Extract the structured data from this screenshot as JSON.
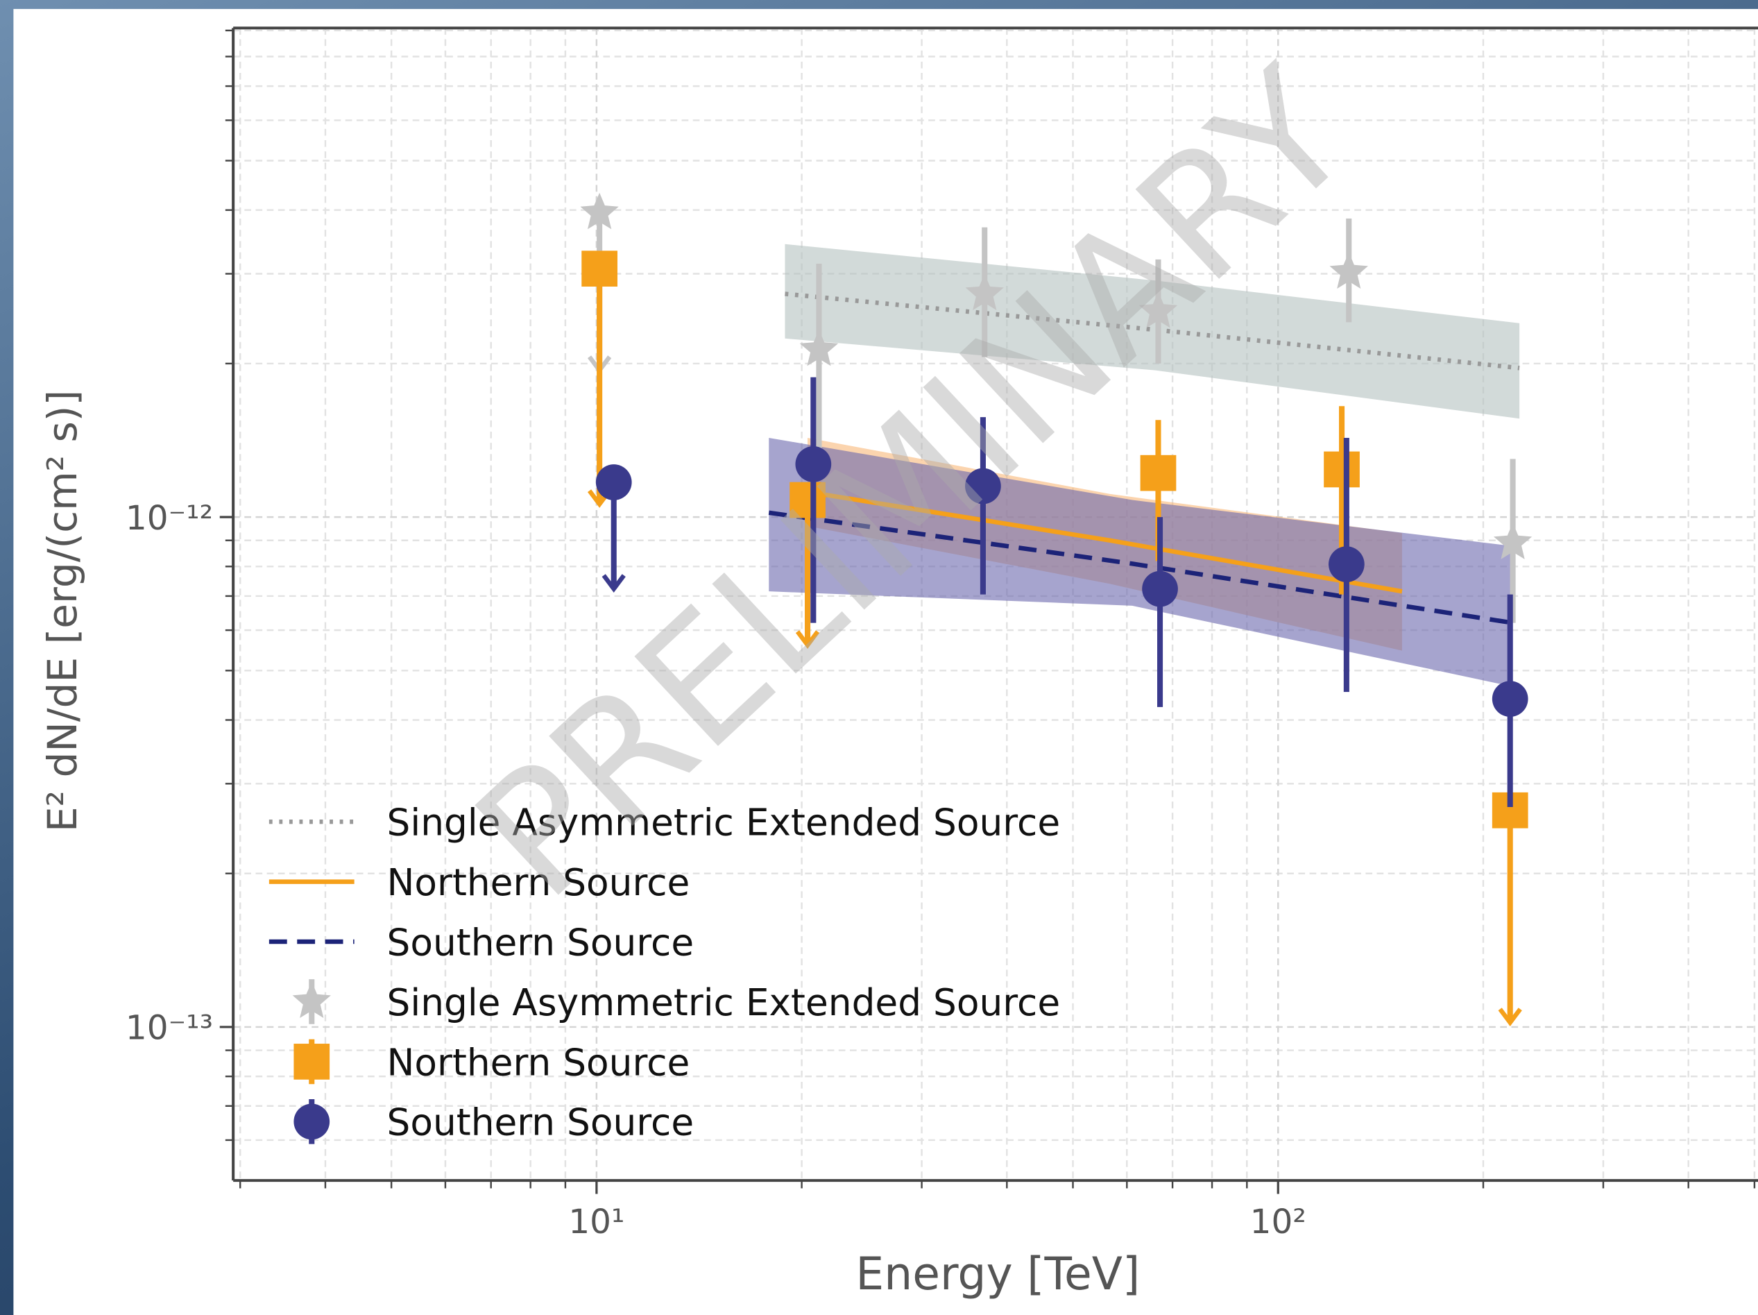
{
  "chart_data": {
    "type": "scatter",
    "xlabel": "Energy [TeV]",
    "ylabel": "E² dN/dE [erg/(cm² s)]",
    "watermark": "PRELIMINARY",
    "xscale": "log",
    "yscale": "log",
    "grid": true,
    "xlim": [
      2.93,
      506
    ],
    "ylim": [
      5e-14,
      9.1e-12
    ],
    "xticks": [
      {
        "value": 10,
        "label": "10¹"
      },
      {
        "value": 100,
        "label": "10²"
      }
    ],
    "yticks": [
      {
        "value": 1e-13,
        "label": "10⁻¹³"
      },
      {
        "value": 1e-12,
        "label": "10⁻¹²"
      }
    ],
    "xminorticks": [
      3,
      4,
      5,
      6,
      7,
      8,
      9,
      20,
      30,
      40,
      50,
      60,
      70,
      80,
      90,
      200,
      300,
      400,
      500
    ],
    "yminorticks": [
      6e-14,
      7e-14,
      8e-14,
      9e-14,
      2e-13,
      3e-13,
      4e-13,
      5e-13,
      6e-13,
      7e-13,
      8e-13,
      9e-13,
      2e-12,
      3e-12,
      4e-12,
      5e-12,
      6e-12,
      7e-12,
      8e-12,
      9e-12
    ],
    "fits": [
      {
        "name": "Single Asymmetric Extended Source",
        "color": "#999999",
        "linestyle": "dotted",
        "band_color": "#b4c1bf",
        "x": [
          18.9,
          66.0,
          226
        ],
        "values": [
          2.74e-12,
          2.33e-12,
          1.96e-12
        ],
        "band_lower": [
          2.24e-12,
          1.94e-12,
          1.56e-12
        ],
        "band_upper": [
          3.43e-12,
          2.91e-12,
          2.4e-12
        ]
      },
      {
        "name": "Northern Source",
        "color": "#f5a01a",
        "linestyle": "solid",
        "band_color": "#f8b878",
        "x": [
          20.4,
          56.6,
          152
        ],
        "values": [
          1.12e-12,
          9e-13,
          7.15e-13
        ],
        "band_lower": [
          9.6e-13,
          7.4e-13,
          5.47e-13
        ],
        "band_upper": [
          1.43e-12,
          1.11e-12,
          9.3e-13
        ]
      },
      {
        "name": "Southern Source",
        "color": "#1c2378",
        "linestyle": "dashed",
        "band_color": "#6b68ad",
        "x": [
          17.9,
          61.1,
          221
        ],
        "values": [
          1.02e-12,
          8.1e-13,
          6.2e-13
        ],
        "band_lower": [
          7.15e-13,
          6.7e-13,
          4.65e-13
        ],
        "band_upper": [
          1.43e-12,
          1.08e-12,
          8.77e-13
        ]
      }
    ],
    "series": [
      {
        "name": "Single Asymmetric Extended Source",
        "color": "#c4c4c4",
        "marker": "star",
        "x": [
          10.1,
          21.2,
          37.1,
          66.7,
          127,
          221
        ],
        "values": [
          3.95e-12,
          2.13e-12,
          2.74e-12,
          2.53e-12,
          3.02e-12,
          8.9e-13
        ],
        "lower": [
          1.94e-12,
          1.36e-12,
          2.06e-12,
          2e-12,
          2.41e-12,
          6.2e-13
        ],
        "upper": [
          null,
          3.14e-12,
          3.7e-12,
          3.2e-12,
          3.85e-12,
          1.3e-12
        ],
        "upper_limit": [
          true,
          false,
          false,
          false,
          false,
          false
        ]
      },
      {
        "name": "Northern Source",
        "color": "#f5a01a",
        "marker": "square",
        "x": [
          10.1,
          20.4,
          66.7,
          124,
          219
        ],
        "values": [
          3.07e-12,
          1.08e-12,
          1.22e-12,
          1.24e-12,
          2.66e-13
        ],
        "lower": [
          1.06e-12,
          5.61e-13,
          8.2e-13,
          7.05e-13,
          1.02e-13
        ],
        "upper": [
          null,
          null,
          1.55e-12,
          1.65e-12,
          null
        ],
        "upper_limit": [
          true,
          true,
          false,
          false,
          true
        ]
      },
      {
        "name": "Southern Source",
        "color": "#3a3a8c",
        "marker": "circle",
        "x": [
          10.6,
          20.8,
          36.9,
          67.1,
          126,
          219
        ],
        "values": [
          1.17e-12,
          1.27e-12,
          1.15e-12,
          7.23e-13,
          8.08e-13,
          4.4e-13
        ],
        "lower": [
          7.23e-13,
          6.2e-13,
          7.05e-13,
          4.24e-13,
          4.54e-13,
          2.7e-13
        ],
        "upper": [
          null,
          1.88e-12,
          1.57e-12,
          1e-12,
          1.43e-12,
          7.05e-13
        ],
        "upper_limit": [
          true,
          false,
          false,
          false,
          false,
          false
        ]
      }
    ]
  }
}
